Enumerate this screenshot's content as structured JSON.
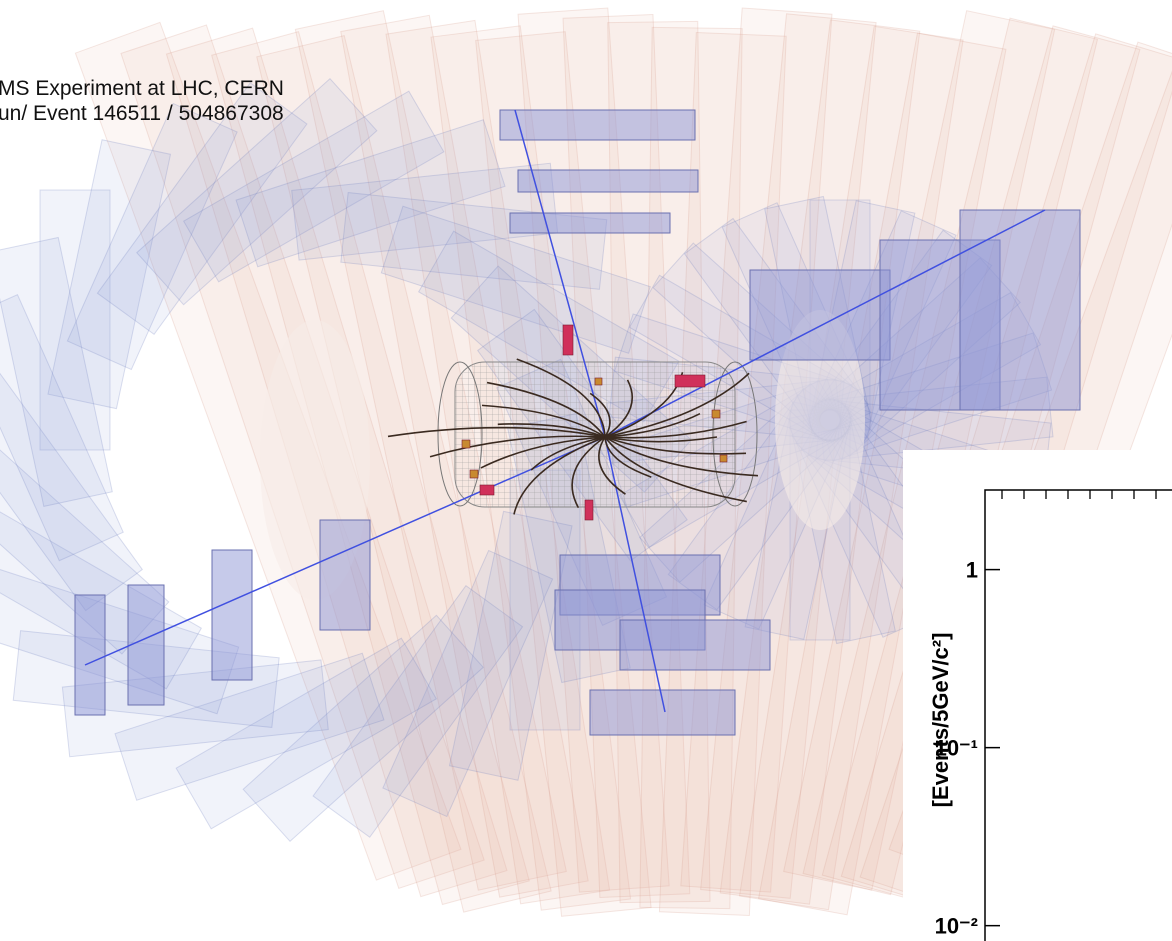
{
  "caption": {
    "line1": "MS Experiment at LHC, CERN",
    "line2": "un/ Event 146511 / 504867308"
  },
  "chart_data": {
    "type": "line",
    "ylabel": "[Events/5GeV/c²]",
    "log_y": true,
    "ylim": [
      0.0082,
      2.8
    ],
    "yticks": [
      {
        "value": 1,
        "label": "1"
      },
      {
        "value": 0.1,
        "label": "10⁻¹"
      },
      {
        "value": 0.01,
        "label": "10⁻²"
      }
    ]
  }
}
